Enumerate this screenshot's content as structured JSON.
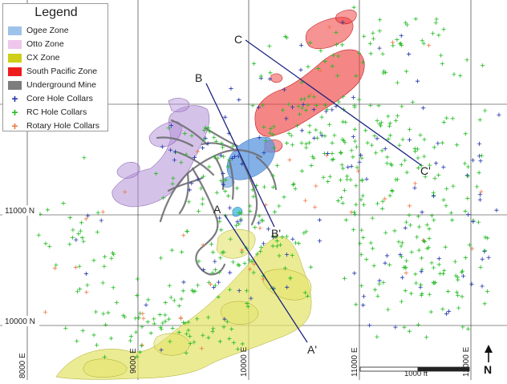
{
  "legend": {
    "title": "Legend",
    "items": [
      {
        "label": "Ogee Zone",
        "kind": "fill",
        "color": "#9ec3ea"
      },
      {
        "label": "Otto Zone",
        "kind": "fill",
        "color": "#efc6ec"
      },
      {
        "label": "CX Zone",
        "kind": "fill",
        "color": "#cfcf1a"
      },
      {
        "label": "South Pacific Zone",
        "kind": "fill",
        "color": "#ee1c1c"
      },
      {
        "label": "Underground Mine",
        "kind": "fill",
        "color": "#7d7d7d"
      },
      {
        "label": "Core Hole Collars",
        "kind": "cross",
        "color": "#2233aa"
      },
      {
        "label": "RC Hole Collars",
        "kind": "cross",
        "color": "#22bb22"
      },
      {
        "label": "Rotary Hole Collars",
        "kind": "cross",
        "color": "#ee7744"
      }
    ]
  },
  "grid": {
    "northing_labels": [
      "11000 N",
      "10000 N"
    ],
    "easting_labels": [
      "8000 E",
      "9000 E",
      "10000 E",
      "11000 E",
      "12000 E"
    ]
  },
  "sections": [
    {
      "start": "A",
      "end": "A'"
    },
    {
      "start": "B",
      "end": "B'"
    },
    {
      "start": "C",
      "end": "C'"
    }
  ],
  "scale_bar": {
    "label": "1000 ft"
  },
  "north_arrow": {
    "label": "N"
  },
  "colors": {
    "ogee": "#5a96dd",
    "otto": "#b28fd6",
    "cx": "#e3e36a",
    "south_pacific": "#ee3b3b",
    "underground": "#6e6e72",
    "core": "#2233aa",
    "rc": "#22bb22",
    "rotary": "#ee7744",
    "section_line": "#1a237e"
  }
}
